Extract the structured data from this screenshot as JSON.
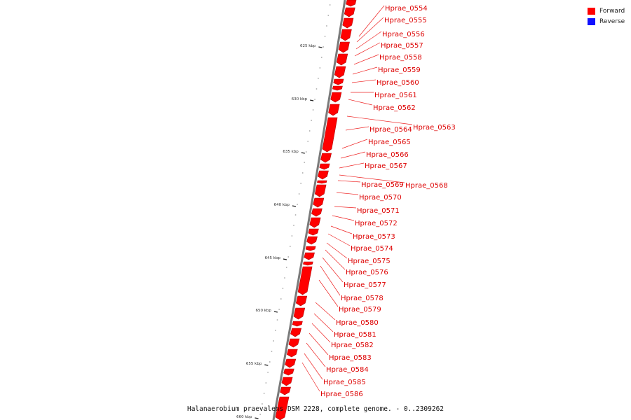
{
  "caption": "Halanaerobium praevalens DSM 2228, complete genome. - 0..2309262",
  "legend": [
    {
      "label": "Forward",
      "color": "#ff0000"
    },
    {
      "label": "Reverse",
      "color": "#1010ff"
    }
  ],
  "colors": {
    "forward": "#ff0000",
    "label": "#dd0000",
    "backbone": "#7a7a7a",
    "tick": "#222222"
  },
  "ticks": [
    {
      "kbp": 625,
      "label": "625 kbp"
    },
    {
      "kbp": 630,
      "label": "630 kbp"
    },
    {
      "kbp": 635,
      "label": "635 kbp"
    },
    {
      "kbp": 640,
      "label": "640 kbp"
    },
    {
      "kbp": 645,
      "label": "645 kbp"
    },
    {
      "kbp": 650,
      "label": "650 kbp"
    },
    {
      "kbp": 655,
      "label": "655 kbp"
    },
    {
      "kbp": 660,
      "label": "660 kbp"
    }
  ],
  "genes": [
    "Hprae_0554",
    "Hprae_0555",
    "Hprae_0556",
    "Hprae_0557",
    "Hprae_0558",
    "Hprae_0559",
    "Hprae_0560",
    "Hprae_0561",
    "Hprae_0562",
    "Hprae_0563",
    "Hprae_0564",
    "Hprae_0565",
    "Hprae_0566",
    "Hprae_0567",
    "Hprae_0568",
    "Hprae_0569",
    "Hprae_0570",
    "Hprae_0571",
    "Hprae_0572",
    "Hprae_0573",
    "Hprae_0574",
    "Hprae_0575",
    "Hprae_0576",
    "Hprae_0577",
    "Hprae_0578",
    "Hprae_0579",
    "Hprae_0580",
    "Hprae_0581",
    "Hprae_0582",
    "Hprae_0583",
    "Hprae_0584",
    "Hprae_0585",
    "Hprae_0586"
  ]
}
